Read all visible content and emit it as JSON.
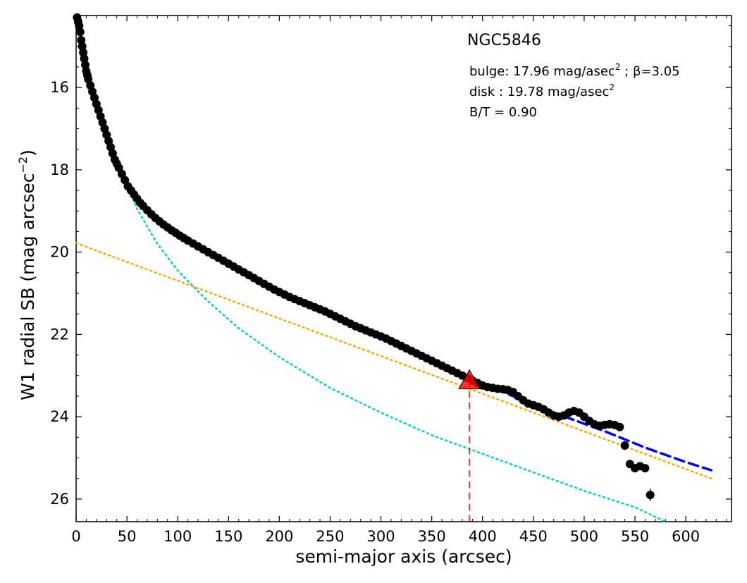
{
  "chart_data": {
    "type": "scatter",
    "title": "NGC5846",
    "xlabel": "semi-major axis (arcsec)",
    "ylabel": "W1 radial SB (mag arcsec",
    "ylabel_sup": "−2",
    "xlim": [
      0,
      645
    ],
    "ylim": [
      26.55,
      14.25
    ],
    "y_inverted": true,
    "grid": false,
    "x_ticks": [
      0,
      50,
      100,
      150,
      200,
      250,
      300,
      350,
      400,
      450,
      500,
      550,
      600
    ],
    "y_ticks": [
      16,
      18,
      20,
      22,
      24,
      26
    ],
    "annotations": {
      "bulge_line": "bulge: 17.96 mag/asec",
      "bulge_sup": "2",
      "bulge_tail": " ; β=3.05",
      "disk_line": "disk  : 19.78 mag/asec",
      "disk_sup": "2",
      "bt_line": "B/T = 0.90"
    },
    "bulge": {
      "mu_e": 17.96,
      "beta": 3.05
    },
    "disk": {
      "mu_0": 19.78
    },
    "bt": 0.9,
    "marker": {
      "type": "triangle",
      "x": 387,
      "y": 23.1,
      "color": "#ff0000"
    },
    "vline": {
      "x": 387,
      "color": "#ff0000"
    },
    "series": [
      {
        "kind": "data",
        "color": "#000000",
        "points": [
          [
            1,
            14.3
          ],
          [
            2,
            14.4
          ],
          [
            3,
            14.5
          ],
          [
            4,
            14.65
          ],
          [
            5,
            14.85
          ],
          [
            6,
            15.0
          ],
          [
            7,
            15.15
          ],
          [
            8,
            15.3
          ],
          [
            9,
            15.45
          ],
          [
            10,
            15.6
          ],
          [
            11,
            15.7
          ],
          [
            12,
            15.8
          ],
          [
            14,
            15.95
          ],
          [
            16,
            16.1
          ],
          [
            18,
            16.25
          ],
          [
            20,
            16.4
          ],
          [
            22,
            16.55
          ],
          [
            24,
            16.7
          ],
          [
            26,
            16.85
          ],
          [
            28,
            17.0
          ],
          [
            30,
            17.15
          ],
          [
            32,
            17.3
          ],
          [
            34,
            17.45
          ],
          [
            36,
            17.6
          ],
          [
            38,
            17.75
          ],
          [
            40,
            17.85
          ],
          [
            42,
            17.95
          ],
          [
            45,
            18.1
          ],
          [
            48,
            18.25
          ],
          [
            51,
            18.4
          ],
          [
            54,
            18.5
          ],
          [
            57,
            18.6
          ],
          [
            60,
            18.7
          ],
          [
            63,
            18.8
          ],
          [
            66,
            18.88
          ],
          [
            70,
            18.98
          ],
          [
            74,
            19.08
          ],
          [
            78,
            19.17
          ],
          [
            82,
            19.25
          ],
          [
            86,
            19.33
          ],
          [
            90,
            19.4
          ],
          [
            94,
            19.47
          ],
          [
            98,
            19.53
          ],
          [
            102,
            19.6
          ],
          [
            106,
            19.66
          ],
          [
            110,
            19.72
          ],
          [
            115,
            19.79
          ],
          [
            120,
            19.86
          ],
          [
            125,
            19.93
          ],
          [
            130,
            20.0
          ],
          [
            135,
            20.07
          ],
          [
            140,
            20.14
          ],
          [
            145,
            20.21
          ],
          [
            150,
            20.28
          ],
          [
            155,
            20.35
          ],
          [
            160,
            20.42
          ],
          [
            165,
            20.49
          ],
          [
            170,
            20.56
          ],
          [
            175,
            20.63
          ],
          [
            180,
            20.7
          ],
          [
            185,
            20.77
          ],
          [
            190,
            20.84
          ],
          [
            195,
            20.91
          ],
          [
            200,
            20.97
          ],
          [
            205,
            21.03
          ],
          [
            210,
            21.09
          ],
          [
            215,
            21.14
          ],
          [
            220,
            21.19
          ],
          [
            225,
            21.24
          ],
          [
            230,
            21.29
          ],
          [
            235,
            21.34
          ],
          [
            240,
            21.39
          ],
          [
            245,
            21.44
          ],
          [
            250,
            21.5
          ],
          [
            255,
            21.56
          ],
          [
            260,
            21.62
          ],
          [
            265,
            21.68
          ],
          [
            270,
            21.74
          ],
          [
            275,
            21.8
          ],
          [
            280,
            21.85
          ],
          [
            285,
            21.9
          ],
          [
            290,
            21.95
          ],
          [
            295,
            22.0
          ],
          [
            300,
            22.05
          ],
          [
            305,
            22.1
          ],
          [
            310,
            22.16
          ],
          [
            315,
            22.22
          ],
          [
            320,
            22.28
          ],
          [
            325,
            22.34
          ],
          [
            330,
            22.4
          ],
          [
            335,
            22.46
          ],
          [
            340,
            22.52
          ],
          [
            345,
            22.58
          ],
          [
            350,
            22.64
          ],
          [
            355,
            22.7
          ],
          [
            360,
            22.76
          ],
          [
            365,
            22.82
          ],
          [
            370,
            22.88
          ],
          [
            375,
            22.94
          ],
          [
            380,
            23.0
          ],
          [
            385,
            23.06
          ],
          [
            390,
            23.12
          ],
          [
            395,
            23.18
          ],
          [
            400,
            23.24
          ],
          [
            405,
            23.28
          ],
          [
            410,
            23.3
          ],
          [
            415,
            23.32
          ],
          [
            420,
            23.33
          ],
          [
            425,
            23.35
          ],
          [
            430,
            23.4
          ],
          [
            435,
            23.5
          ],
          [
            440,
            23.6
          ],
          [
            445,
            23.68
          ],
          [
            450,
            23.72
          ],
          [
            455,
            23.76
          ],
          [
            460,
            23.82
          ],
          [
            465,
            23.9
          ],
          [
            470,
            23.97
          ],
          [
            475,
            24.0
          ],
          [
            480,
            23.97
          ],
          [
            485,
            23.9
          ],
          [
            490,
            23.86
          ],
          [
            495,
            23.9
          ],
          [
            500,
            24.0
          ],
          [
            505,
            24.1
          ],
          [
            510,
            24.18
          ],
          [
            515,
            24.22
          ],
          [
            520,
            24.2
          ],
          [
            525,
            24.18
          ],
          [
            530,
            24.2
          ],
          [
            535,
            24.25
          ],
          [
            540,
            24.7
          ],
          [
            545,
            25.15
          ],
          [
            550,
            25.25
          ],
          [
            555,
            25.2
          ],
          [
            560,
            25.25
          ],
          [
            565,
            25.9
          ]
        ]
      },
      {
        "kind": "total-fit",
        "color": "#0000ff",
        "points": [
          [
            5,
            14.85
          ],
          [
            10,
            15.6
          ],
          [
            15,
            16.05
          ],
          [
            20,
            16.4
          ],
          [
            30,
            17.15
          ],
          [
            40,
            17.85
          ],
          [
            50,
            18.3
          ],
          [
            60,
            18.7
          ],
          [
            80,
            19.2
          ],
          [
            100,
            19.57
          ],
          [
            130,
            20.0
          ],
          [
            160,
            20.42
          ],
          [
            200,
            20.97
          ],
          [
            250,
            21.5
          ],
          [
            300,
            22.05
          ],
          [
            350,
            22.64
          ],
          [
            387,
            23.1
          ],
          [
            420,
            23.4
          ],
          [
            470,
            23.9
          ],
          [
            520,
            24.35
          ],
          [
            560,
            24.75
          ],
          [
            600,
            25.1
          ],
          [
            625,
            25.3
          ]
        ]
      },
      {
        "kind": "disk-fit",
        "color": "#ffa500",
        "points": [
          [
            0,
            19.78
          ],
          [
            625,
            25.5
          ]
        ]
      },
      {
        "kind": "bulge-fit",
        "color": "#00cccc",
        "points": [
          [
            5,
            14.85
          ],
          [
            10,
            15.6
          ],
          [
            20,
            16.4
          ],
          [
            30,
            17.15
          ],
          [
            40,
            17.85
          ],
          [
            50,
            18.4
          ],
          [
            60,
            18.95
          ],
          [
            80,
            19.8
          ],
          [
            100,
            20.45
          ],
          [
            130,
            21.2
          ],
          [
            160,
            21.85
          ],
          [
            200,
            22.55
          ],
          [
            250,
            23.3
          ],
          [
            300,
            23.9
          ],
          [
            350,
            24.45
          ],
          [
            400,
            24.9
          ],
          [
            450,
            25.35
          ],
          [
            500,
            25.8
          ],
          [
            550,
            26.2
          ],
          [
            580,
            26.55
          ]
        ]
      }
    ]
  }
}
